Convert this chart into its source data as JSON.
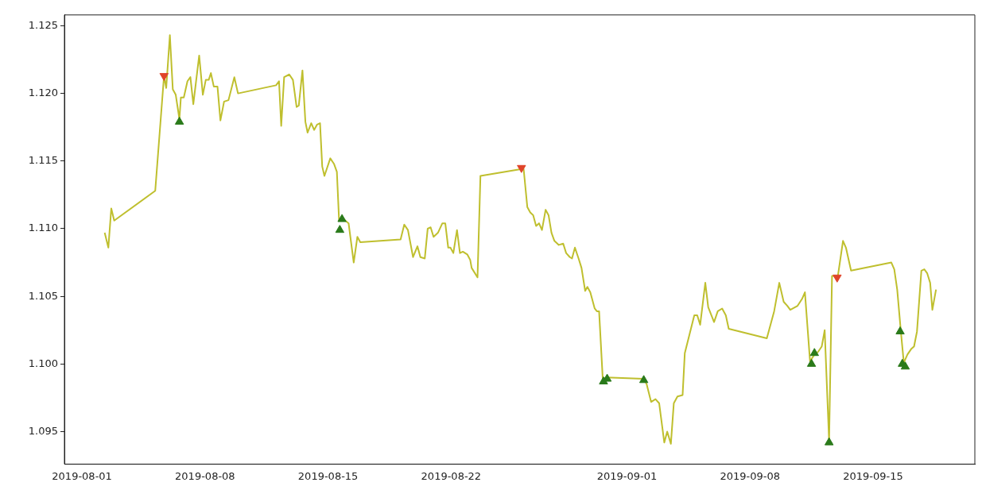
{
  "chart_data": {
    "type": "line",
    "xlim": [
      "2019-07-31T00:00",
      "2019-09-20T19:00"
    ],
    "xticks": [
      "2019-08-01",
      "2019-08-08",
      "2019-08-15",
      "2019-08-22",
      "2019-09-01",
      "2019-09-08",
      "2019-09-15"
    ],
    "ylim": [
      1.0926,
      1.1258
    ],
    "yticks": [
      1.095,
      {
        "value": 1.1,
        "label": "1.100"
      },
      1.105,
      {
        "value": 1.11,
        "label": "1.110"
      },
      1.115,
      {
        "value": 1.12,
        "label": "1.120"
      },
      1.125
    ],
    "grid": false,
    "legend": false,
    "series": [
      {
        "type": "line",
        "color": "#bfbf2e",
        "marker": "none",
        "x": [
          "2019-08-02T07:00",
          "2019-08-02T12:00",
          "2019-08-02T16:00",
          "2019-08-02T20:00",
          "2019-08-05T04:00",
          "2019-08-05T16:00",
          "2019-08-05T19:00",
          "2019-08-06T00:00",
          "2019-08-06T04:00",
          "2019-08-06T08:00",
          "2019-08-06T13:00",
          "2019-08-06T15:00",
          "2019-08-06T19:00",
          "2019-08-07T00:00",
          "2019-08-07T04:00",
          "2019-08-07T08:00",
          "2019-08-07T16:00",
          "2019-08-07T21:00",
          "2019-08-08T01:00",
          "2019-08-08T05:00",
          "2019-08-08T08:00",
          "2019-08-08T12:00",
          "2019-08-08T17:00",
          "2019-08-08T21:00",
          "2019-08-09T02:00",
          "2019-08-09T08:00",
          "2019-08-09T16:00",
          "2019-08-09T21:00",
          "2019-08-12T01:00",
          "2019-08-12T05:00",
          "2019-08-12T08:00",
          "2019-08-12T12:00",
          "2019-08-12T19:00",
          "2019-08-13T00:00",
          "2019-08-13T05:00",
          "2019-08-13T08:00",
          "2019-08-13T13:00",
          "2019-08-13T17:00",
          "2019-08-13T20:00",
          "2019-08-14T01:00",
          "2019-08-14T05:00",
          "2019-08-14T09:00",
          "2019-08-14T13:00",
          "2019-08-14T16:00",
          "2019-08-14T19:00",
          "2019-08-15T03:00",
          "2019-08-15T08:00",
          "2019-08-15T12:00",
          "2019-08-15T15:00",
          "2019-08-15T19:00",
          "2019-08-16T04:00",
          "2019-08-16T11:00",
          "2019-08-16T16:00",
          "2019-08-16T20:00",
          "2019-08-19T03:00",
          "2019-08-19T08:00",
          "2019-08-19T13:00",
          "2019-08-19T20:00",
          "2019-08-20T02:00",
          "2019-08-20T06:00",
          "2019-08-20T12:00",
          "2019-08-20T16:00",
          "2019-08-20T20:00",
          "2019-08-21T00:00",
          "2019-08-21T06:00",
          "2019-08-21T12:00",
          "2019-08-21T16:00",
          "2019-08-21T20:00",
          "2019-08-21T23:00",
          "2019-08-22T03:00",
          "2019-08-22T08:00",
          "2019-08-22T12:00",
          "2019-08-22T16:00",
          "2019-08-22T22:00",
          "2019-08-23T02:00",
          "2019-08-23T04:00",
          "2019-08-23T12:00",
          "2019-08-23T16:00",
          "2019-08-25T23:00",
          "2019-08-26T03:00",
          "2019-08-26T08:00",
          "2019-08-26T12:00",
          "2019-08-26T16:00",
          "2019-08-26T20:00",
          "2019-08-27T00:00",
          "2019-08-27T04:00",
          "2019-08-27T09:00",
          "2019-08-27T13:00",
          "2019-08-27T17:00",
          "2019-08-27T21:00",
          "2019-08-28T03:00",
          "2019-08-28T09:00",
          "2019-08-28T13:00",
          "2019-08-28T18:00",
          "2019-08-28T21:00",
          "2019-08-29T01:00",
          "2019-08-29T06:00",
          "2019-08-29T10:00",
          "2019-08-29T15:00",
          "2019-08-29T18:00",
          "2019-08-29T22:00",
          "2019-08-30T04:00",
          "2019-08-30T07:00",
          "2019-08-30T10:00",
          "2019-08-30T15:00",
          "2019-08-30T20:00",
          "2019-09-01T23:00",
          "2019-09-02T03:00",
          "2019-09-02T09:00",
          "2019-09-02T15:00",
          "2019-09-02T20:00",
          "2019-09-03T03:00",
          "2019-09-03T07:00",
          "2019-09-03T12:00",
          "2019-09-03T16:00",
          "2019-09-03T21:00",
          "2019-09-04T04:00",
          "2019-09-04T07:00",
          "2019-09-04T20:00",
          "2019-09-05T00:00",
          "2019-09-05T04:00",
          "2019-09-05T11:00",
          "2019-09-05T15:00",
          "2019-09-05T23:00",
          "2019-09-06T04:00",
          "2019-09-06T10:00",
          "2019-09-06T15:00",
          "2019-09-06T19:00",
          "2019-09-08T23:00",
          "2019-09-09T09:00",
          "2019-09-09T16:00",
          "2019-09-09T22:00",
          "2019-09-10T03:00",
          "2019-09-10T07:00",
          "2019-09-10T17:00",
          "2019-09-10T23:00",
          "2019-09-11T03:00",
          "2019-09-11T10:00",
          "2019-09-11T16:00",
          "2019-09-11T21:00",
          "2019-09-12T02:00",
          "2019-09-12T06:00",
          "2019-09-12T12:00",
          "2019-09-12T16:00",
          "2019-09-13T00:00",
          "2019-09-13T07:00",
          "2019-09-13T11:00",
          "2019-09-13T18:00",
          "2019-09-16T01:00",
          "2019-09-16T05:00",
          "2019-09-16T09:00",
          "2019-09-16T14:00",
          "2019-09-16T18:00",
          "2019-09-16T23:00",
          "2019-09-17T04:00",
          "2019-09-17T08:00",
          "2019-09-17T12:00",
          "2019-09-17T18:00",
          "2019-09-17T22:00",
          "2019-09-18T02:00",
          "2019-09-18T06:00",
          "2019-09-18T09:00",
          "2019-09-18T14:00"
        ],
        "values": [
          1.1097,
          1.1086,
          1.1115,
          1.1106,
          1.1128,
          1.1213,
          1.1204,
          1.1243,
          1.1203,
          1.1199,
          1.1181,
          1.1197,
          1.1197,
          1.1209,
          1.1212,
          1.1192,
          1.1228,
          1.1199,
          1.121,
          1.121,
          1.1215,
          1.1205,
          1.1205,
          1.118,
          1.1194,
          1.1195,
          1.1212,
          1.12,
          1.1206,
          1.1209,
          1.1176,
          1.1212,
          1.1214,
          1.121,
          1.119,
          1.1191,
          1.1217,
          1.1179,
          1.1171,
          1.1178,
          1.1173,
          1.1177,
          1.1178,
          1.1146,
          1.1139,
          1.1152,
          1.1148,
          1.1142,
          1.1106,
          1.1108,
          1.1104,
          1.1075,
          1.1094,
          1.109,
          1.1092,
          1.1103,
          1.1099,
          1.1079,
          1.1087,
          1.1079,
          1.1078,
          1.11,
          1.1101,
          1.1094,
          1.1097,
          1.1104,
          1.1104,
          1.1086,
          1.1086,
          1.1082,
          1.1099,
          1.1082,
          1.1083,
          1.1081,
          1.1077,
          1.1071,
          1.1064,
          1.1139,
          1.1144,
          1.1144,
          1.1116,
          1.1112,
          1.111,
          1.1102,
          1.1104,
          1.1099,
          1.1114,
          1.111,
          1.1097,
          1.1091,
          1.1088,
          1.1089,
          1.1082,
          1.1079,
          1.1078,
          1.1086,
          1.1078,
          1.1071,
          1.1054,
          1.1057,
          1.1053,
          1.1041,
          1.1039,
          1.1039,
          1.0989,
          1.099,
          1.0989,
          1.0985,
          1.0972,
          1.0974,
          1.0971,
          1.0942,
          1.095,
          1.0941,
          1.0971,
          1.0976,
          1.0977,
          1.1008,
          1.1036,
          1.1036,
          1.1029,
          1.106,
          1.1042,
          1.1031,
          1.1039,
          1.1041,
          1.1036,
          1.1026,
          1.1019,
          1.1039,
          1.106,
          1.1046,
          1.1043,
          1.104,
          1.1043,
          1.1048,
          1.1053,
          1.1002,
          1.1007,
          1.1009,
          1.1013,
          1.1025,
          1.0943,
          1.1065,
          1.1065,
          1.1091,
          1.1086,
          1.1069,
          1.1075,
          1.107,
          1.1055,
          1.1024,
          1.1001,
          1.1007,
          1.1011,
          1.1013,
          1.1024,
          1.1069,
          1.107,
          1.1067,
          1.106,
          1.104,
          1.1055
        ]
      },
      {
        "type": "scatter",
        "color": "#e0442a",
        "marker": "triangle-down",
        "x": [
          "2019-08-05T16:00",
          "2019-08-26T00:00",
          "2019-09-12T23:00"
        ],
        "values": [
          1.1213,
          1.1145,
          1.1064
        ]
      },
      {
        "type": "scatter",
        "color": "#2a7a1a",
        "marker": "triangle",
        "x": [
          "2019-08-06T13:00",
          "2019-08-15T16:00",
          "2019-08-15T19:00",
          "2019-08-30T16:00",
          "2019-08-30T21:00",
          "2019-09-01T23:00",
          "2019-09-11T12:00",
          "2019-09-11T16:00",
          "2019-09-12T12:00",
          "2019-09-16T13:00",
          "2019-09-16T16:00",
          "2019-09-16T20:00"
        ],
        "values": [
          1.1179,
          1.1099,
          1.1107,
          1.0987,
          1.0989,
          1.0988,
          1.1,
          1.1008,
          1.0942,
          1.1024,
          1.1,
          1.0998
        ]
      }
    ]
  }
}
